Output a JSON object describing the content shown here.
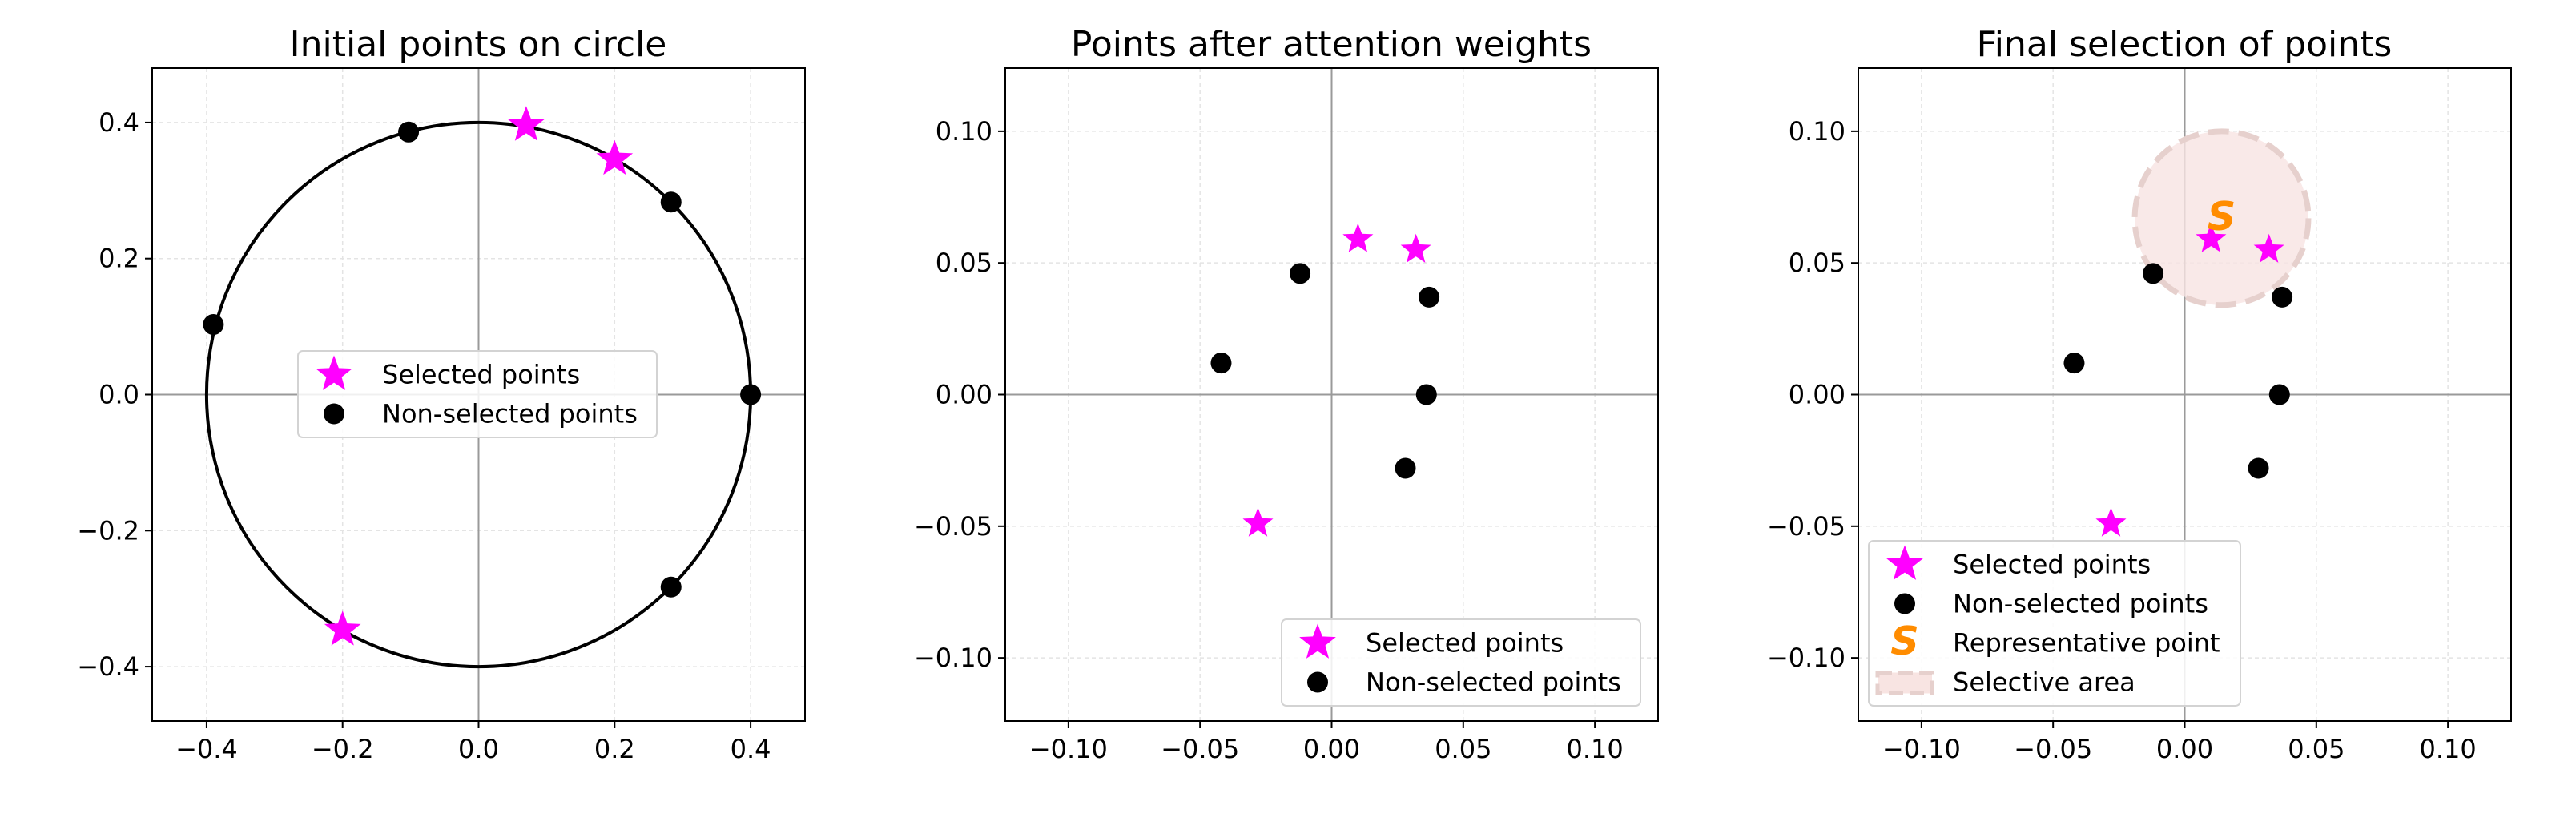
{
  "chart_data": [
    {
      "type": "scatter",
      "title": "Initial points on circle",
      "xlabel": "",
      "ylabel": "",
      "xlim": [
        -0.48,
        0.48
      ],
      "ylim": [
        -0.48,
        0.48
      ],
      "xticks": [
        -0.4,
        -0.2,
        0.0,
        0.2,
        0.4
      ],
      "yticks": [
        -0.4,
        -0.2,
        0.0,
        0.2,
        0.4
      ],
      "xtick_labels": [
        "−0.4",
        "−0.2",
        "0.0",
        "0.2",
        "0.4"
      ],
      "ytick_labels": [
        "−0.4",
        "−0.2",
        "0.0",
        "0.2",
        "0.4"
      ],
      "grid": true,
      "circle": {
        "cx": 0,
        "cy": 0,
        "r": 0.4,
        "color": "#000000"
      },
      "series": [
        {
          "name": "Selected points",
          "marker": "star",
          "color": "#ff00ff",
          "points": [
            [
              0.07,
              0.396
            ],
            [
              0.2,
              0.346
            ],
            [
              -0.2,
              -0.346
            ]
          ]
        },
        {
          "name": "Non-selected points",
          "marker": "circle",
          "color": "#000000",
          "points": [
            [
              -0.103,
              0.386
            ],
            [
              0.283,
              0.283
            ],
            [
              -0.39,
              0.103
            ],
            [
              0.4,
              0.0
            ],
            [
              0.283,
              -0.283
            ]
          ]
        }
      ],
      "legend": {
        "position": "center",
        "entries": [
          "Selected points",
          "Non-selected points"
        ]
      }
    },
    {
      "type": "scatter",
      "title": "Points after attention weights",
      "xlabel": "",
      "ylabel": "",
      "xlim": [
        -0.124,
        0.124
      ],
      "ylim": [
        -0.124,
        0.124
      ],
      "xticks": [
        -0.1,
        -0.05,
        0.0,
        0.05,
        0.1
      ],
      "yticks": [
        -0.1,
        -0.05,
        0.0,
        0.05,
        0.1
      ],
      "xtick_labels": [
        "−0.10",
        "−0.05",
        "0.00",
        "0.05",
        "0.10"
      ],
      "ytick_labels": [
        "−0.10",
        "−0.05",
        "0.00",
        "0.05",
        "0.10"
      ],
      "grid": true,
      "series": [
        {
          "name": "Selected points",
          "marker": "star",
          "color": "#ff00ff",
          "points": [
            [
              0.01,
              0.059
            ],
            [
              0.032,
              0.055
            ],
            [
              -0.028,
              -0.049
            ]
          ]
        },
        {
          "name": "Non-selected points",
          "marker": "circle",
          "color": "#000000",
          "points": [
            [
              -0.012,
              0.046
            ],
            [
              0.037,
              0.037
            ],
            [
              -0.042,
              0.012
            ],
            [
              0.036,
              0.0
            ],
            [
              0.028,
              -0.028
            ]
          ]
        }
      ],
      "legend": {
        "position": "lower-right",
        "entries": [
          "Selected points",
          "Non-selected points"
        ]
      }
    },
    {
      "type": "scatter",
      "title": "Final selection of points",
      "xlabel": "",
      "ylabel": "",
      "xlim": [
        -0.124,
        0.124
      ],
      "ylim": [
        -0.124,
        0.124
      ],
      "xticks": [
        -0.1,
        -0.05,
        0.0,
        0.05,
        0.1
      ],
      "yticks": [
        -0.1,
        -0.05,
        0.0,
        0.05,
        0.1
      ],
      "xtick_labels": [
        "−0.10",
        "−0.05",
        "0.00",
        "0.05",
        "0.10"
      ],
      "ytick_labels": [
        "−0.10",
        "−0.05",
        "0.00",
        "0.05",
        "0.10"
      ],
      "grid": true,
      "selective_area": {
        "name": "Selective area",
        "cx": 0.014,
        "cy": 0.067,
        "r": 0.033,
        "fill": "#f8e4e2",
        "edge": "#e6d0cd"
      },
      "representative": {
        "name": "Representative point",
        "x": 0.014,
        "y": 0.067,
        "marker": "S",
        "color": "#ff8c00"
      },
      "series": [
        {
          "name": "Selected points",
          "marker": "star",
          "color": "#ff00ff",
          "points": [
            [
              0.01,
              0.059
            ],
            [
              0.032,
              0.055
            ],
            [
              -0.028,
              -0.049
            ]
          ]
        },
        {
          "name": "Non-selected points",
          "marker": "circle",
          "color": "#000000",
          "points": [
            [
              -0.012,
              0.046
            ],
            [
              0.037,
              0.037
            ],
            [
              -0.042,
              0.012
            ],
            [
              0.036,
              0.0
            ],
            [
              0.028,
              -0.028
            ]
          ]
        }
      ],
      "legend": {
        "position": "lower-left",
        "entries": [
          "Selected points",
          "Non-selected points",
          "Representative point",
          "Selective area"
        ]
      }
    }
  ]
}
